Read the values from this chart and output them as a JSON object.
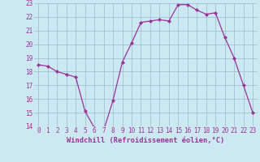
{
  "x": [
    0,
    1,
    2,
    3,
    4,
    5,
    6,
    7,
    8,
    9,
    10,
    11,
    12,
    13,
    14,
    15,
    16,
    17,
    18,
    19,
    20,
    21,
    22,
    23
  ],
  "y": [
    18.5,
    18.4,
    18.0,
    17.8,
    17.6,
    15.1,
    13.9,
    13.7,
    15.9,
    18.7,
    20.1,
    21.6,
    21.7,
    21.8,
    21.7,
    22.9,
    22.9,
    22.5,
    22.2,
    22.3,
    20.5,
    19.0,
    17.0,
    15.0
  ],
  "xlabel": "Windchill (Refroidissement éolien,°C)",
  "ylim": [
    14,
    23
  ],
  "xlim": [
    -0.5,
    23.5
  ],
  "yticks": [
    14,
    15,
    16,
    17,
    18,
    19,
    20,
    21,
    22,
    23
  ],
  "xticks": [
    0,
    1,
    2,
    3,
    4,
    5,
    6,
    7,
    8,
    9,
    10,
    11,
    12,
    13,
    14,
    15,
    16,
    17,
    18,
    19,
    20,
    21,
    22,
    23
  ],
  "line_color": "#993399",
  "marker_color": "#993399",
  "bg_color": "#cce8f0",
  "grid_color": "#99bbcc",
  "tick_color": "#993399",
  "label_color": "#993399",
  "tick_fontsize": 5.5,
  "xlabel_fontsize": 6.2
}
